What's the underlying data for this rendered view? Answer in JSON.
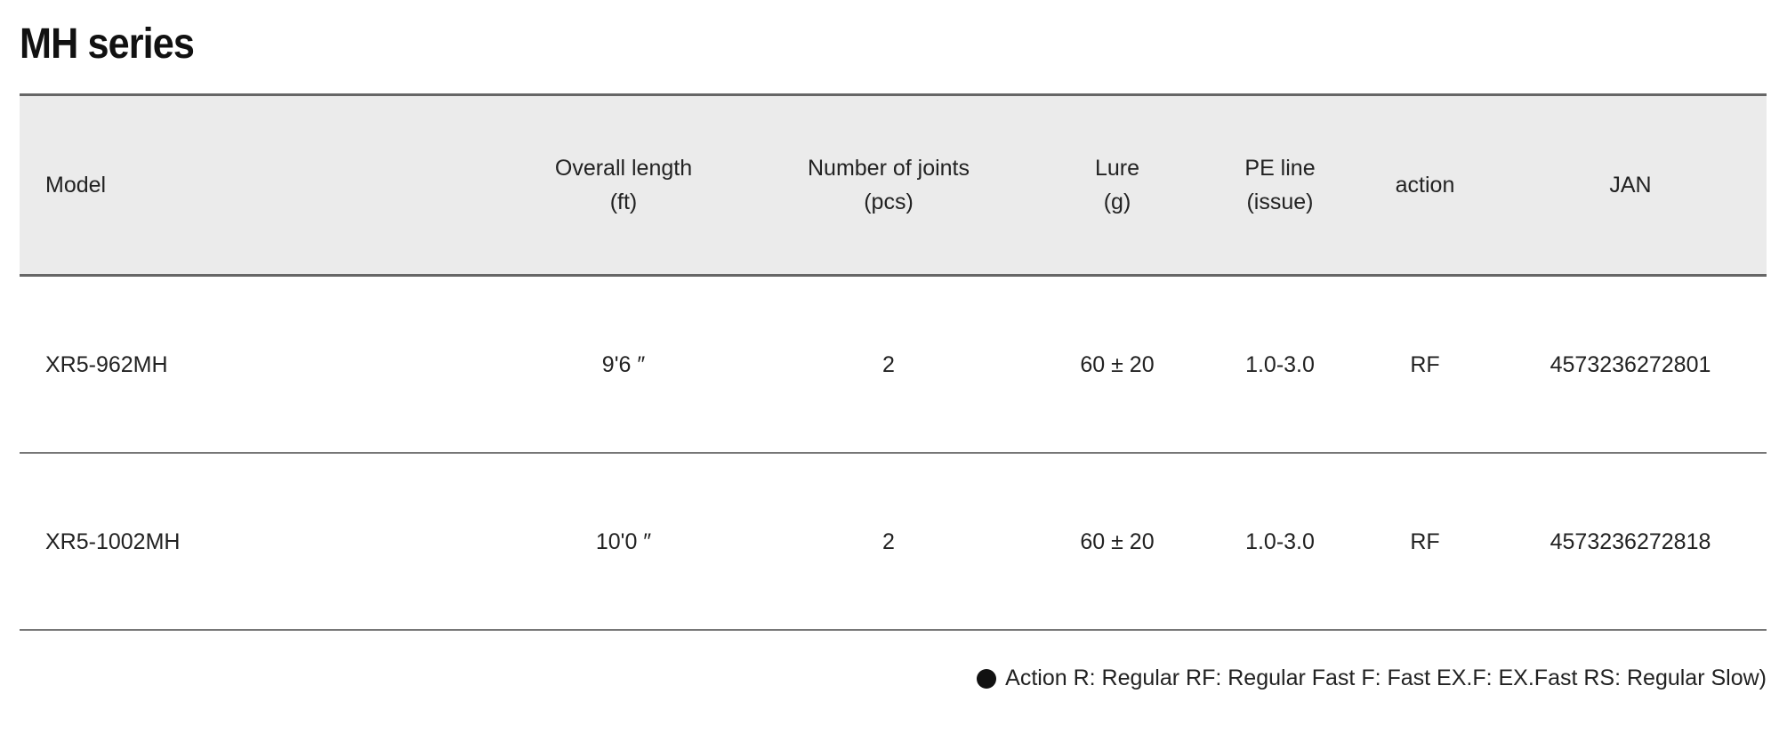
{
  "title": "MH series",
  "table": {
    "headers": [
      {
        "line1": "Model",
        "line2": ""
      },
      {
        "line1": "Overall length",
        "line2": "(ft)"
      },
      {
        "line1": "Number of joints",
        "line2": "(pcs)"
      },
      {
        "line1": "Lure",
        "line2": "(g)"
      },
      {
        "line1": "PE line",
        "line2": "(issue)"
      },
      {
        "line1": "action",
        "line2": ""
      },
      {
        "line1": "JAN",
        "line2": ""
      }
    ],
    "rows": [
      [
        "XR5-962MH",
        "9'6 ″",
        "2",
        "60 ± 20",
        "1.0-3.0",
        "RF",
        "4573236272801"
      ],
      [
        "XR5-1002MH",
        "10'0 ″",
        "2",
        "60 ± 20",
        "1.0-3.0",
        "RF",
        "4573236272818"
      ]
    ]
  },
  "footnote": {
    "icon": "bullet-circle",
    "text": "Action R: Regular RF: Regular Fast F: Fast EX.F: EX.Fast RS: Regular Slow)"
  }
}
